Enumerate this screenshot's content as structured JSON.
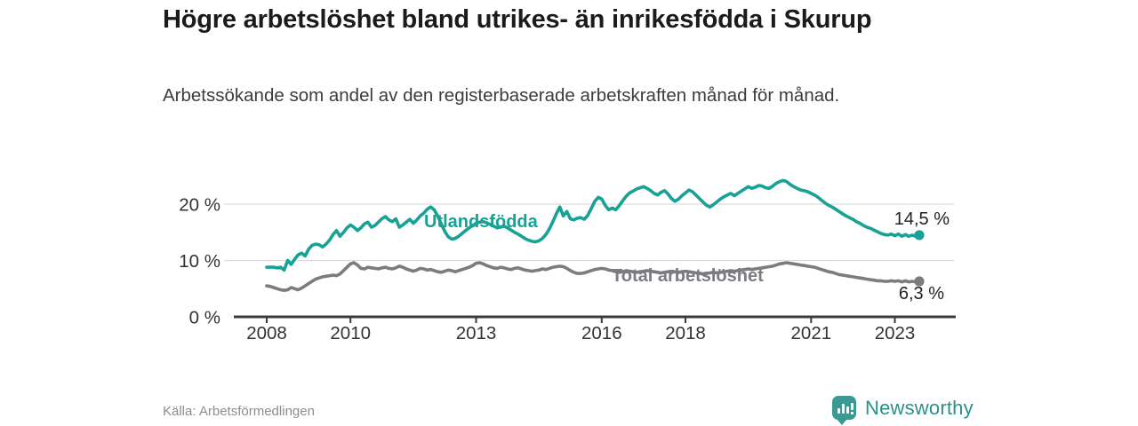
{
  "header": {
    "title": "Högre arbetslöshet bland utrikes- än inrikesfödda i Skurup",
    "subtitle": "Arbetssökande som andel av den registerbaserade arbetskraften månad för månad."
  },
  "chart": {
    "series_label_foreign": "Utlandsfödda",
    "series_label_total": "Total arbetslöshet",
    "end_value_foreign": "14,5 %",
    "end_value_total": "6,3 %"
  },
  "footer": {
    "source": "Källa: Arbetsförmedlingen",
    "brand": "Newsworthy"
  },
  "colors": {
    "accent_teal": "#17a295",
    "line_gray": "#7b7c80",
    "axis_dark": "#3b3b3b",
    "gridline": "#dcdcdc",
    "tick_text": "#333333",
    "logo_teal": "#3a9a93",
    "logo_text_teal": "#2a918a"
  },
  "chart_data": {
    "type": "line",
    "title": "Högre arbetslöshet bland utrikes- än inrikesfödda i Skurup",
    "subtitle": "Arbetssökande som andel av den registerbaserade arbetskraften månad för månad.",
    "source": "Källa: Arbetsförmedlingen",
    "unit": "%",
    "frequency": "monthly",
    "x_start": "2008-01",
    "x_end": "2023-08",
    "xlabel": "",
    "ylabel": "",
    "ylim": [
      0,
      26
    ],
    "grid": "horizontal",
    "legend_position": "inline-labels",
    "ytick_values": [
      0,
      10,
      20
    ],
    "yticks": [
      "0 %",
      "10 %",
      "20 %"
    ],
    "xtick_years": [
      2008,
      2010,
      2013,
      2016,
      2018,
      2021,
      2023
    ],
    "xticks": [
      "2008",
      "2010",
      "2013",
      "2016",
      "2018",
      "2021",
      "2023"
    ],
    "series": [
      {
        "name": "Utlandsfödda",
        "color": "#17a295",
        "end_label": "14,5 %",
        "end_value": 14.5,
        "values": [
          8.8,
          8.8,
          8.8,
          8.7,
          8.8,
          8.3,
          10.0,
          9.3,
          10.2,
          11.0,
          11.3,
          10.8,
          12.0,
          12.7,
          12.9,
          12.8,
          12.4,
          12.9,
          13.6,
          14.6,
          15.3,
          14.3,
          15.0,
          15.8,
          16.3,
          15.9,
          15.3,
          15.8,
          16.5,
          16.8,
          15.9,
          16.2,
          16.8,
          17.4,
          17.8,
          17.2,
          16.9,
          17.4,
          15.9,
          16.3,
          16.8,
          17.3,
          16.6,
          17.2,
          17.9,
          18.4,
          19.1,
          19.5,
          19.0,
          17.9,
          16.5,
          15.2,
          14.2,
          13.8,
          13.9,
          14.3,
          14.8,
          15.3,
          15.8,
          16.2,
          16.6,
          16.8,
          16.9,
          16.7,
          16.4,
          16.1,
          15.8,
          15.9,
          16.1,
          15.8,
          15.4,
          15.0,
          14.7,
          14.3,
          13.9,
          13.6,
          13.4,
          13.3,
          13.5,
          13.9,
          14.6,
          15.6,
          16.9,
          18.3,
          19.5,
          17.9,
          18.7,
          17.4,
          17.2,
          17.5,
          17.6,
          17.3,
          18.0,
          19.2,
          20.5,
          21.2,
          20.9,
          19.8,
          19.0,
          19.3,
          19.0,
          19.7,
          20.6,
          21.4,
          22.0,
          22.3,
          22.7,
          22.9,
          23.1,
          22.8,
          22.4,
          21.9,
          21.6,
          22.1,
          22.4,
          21.8,
          21.0,
          20.5,
          20.9,
          21.5,
          22.0,
          22.5,
          22.2,
          21.6,
          21.0,
          20.4,
          19.8,
          19.5,
          19.9,
          20.4,
          20.9,
          21.3,
          21.6,
          21.9,
          21.5,
          21.9,
          22.3,
          22.7,
          23.1,
          22.8,
          23.0,
          23.3,
          23.2,
          22.9,
          22.8,
          23.2,
          23.7,
          24.0,
          24.2,
          24.0,
          23.5,
          23.1,
          22.8,
          22.5,
          22.4,
          22.2,
          21.9,
          21.6,
          21.2,
          20.7,
          20.2,
          19.8,
          19.5,
          19.1,
          18.7,
          18.3,
          17.9,
          17.6,
          17.3,
          16.9,
          16.6,
          16.2,
          15.9,
          15.7,
          15.4,
          15.1,
          14.8,
          14.6,
          14.5,
          14.7,
          14.4,
          14.7,
          14.3,
          14.6,
          14.3,
          14.5,
          14.3,
          14.5
        ]
      },
      {
        "name": "Total arbetslöshet",
        "color": "#7b7c80",
        "end_label": "6,3 %",
        "end_value": 6.3,
        "values": [
          5.5,
          5.4,
          5.2,
          5.0,
          4.8,
          4.7,
          4.8,
          5.2,
          5.0,
          4.8,
          5.1,
          5.5,
          5.9,
          6.3,
          6.7,
          6.9,
          7.1,
          7.2,
          7.3,
          7.4,
          7.3,
          7.6,
          8.2,
          8.8,
          9.4,
          9.6,
          9.2,
          8.6,
          8.5,
          8.8,
          8.7,
          8.6,
          8.5,
          8.7,
          8.8,
          8.6,
          8.5,
          8.7,
          9.0,
          8.8,
          8.5,
          8.3,
          8.1,
          8.3,
          8.6,
          8.5,
          8.3,
          8.4,
          8.2,
          8.0,
          7.9,
          8.1,
          8.3,
          8.2,
          8.0,
          8.2,
          8.4,
          8.6,
          8.8,
          9.1,
          9.5,
          9.6,
          9.4,
          9.1,
          8.9,
          8.7,
          8.6,
          8.8,
          8.7,
          8.5,
          8.4,
          8.6,
          8.7,
          8.5,
          8.3,
          8.2,
          8.1,
          8.2,
          8.3,
          8.5,
          8.4,
          8.6,
          8.8,
          8.9,
          9.0,
          8.9,
          8.6,
          8.2,
          7.9,
          7.7,
          7.7,
          7.8,
          8.0,
          8.2,
          8.4,
          8.5,
          8.6,
          8.5,
          8.3,
          8.2,
          8.0,
          7.9,
          8.0,
          8.2,
          8.1,
          8.0,
          7.9,
          8.0,
          8.1,
          8.2,
          8.1,
          8.0,
          7.9,
          7.8,
          7.9,
          8.0,
          8.1,
          8.0,
          7.9,
          8.0,
          8.1,
          8.0,
          7.9,
          7.8,
          7.7,
          7.6,
          7.7,
          7.8,
          7.9,
          7.8,
          7.9,
          8.0,
          8.1,
          8.2,
          8.1,
          8.2,
          8.3,
          8.4,
          8.5,
          8.4,
          8.5,
          8.6,
          8.7,
          8.8,
          8.9,
          9.0,
          9.2,
          9.4,
          9.5,
          9.6,
          9.5,
          9.4,
          9.3,
          9.2,
          9.1,
          9.0,
          8.9,
          8.8,
          8.6,
          8.4,
          8.2,
          8.0,
          7.9,
          7.7,
          7.5,
          7.4,
          7.3,
          7.2,
          7.1,
          7.0,
          6.9,
          6.8,
          6.7,
          6.6,
          6.5,
          6.4,
          6.4,
          6.3,
          6.3,
          6.4,
          6.3,
          6.4,
          6.2,
          6.4,
          6.2,
          6.3,
          6.2,
          6.3
        ]
      }
    ]
  }
}
